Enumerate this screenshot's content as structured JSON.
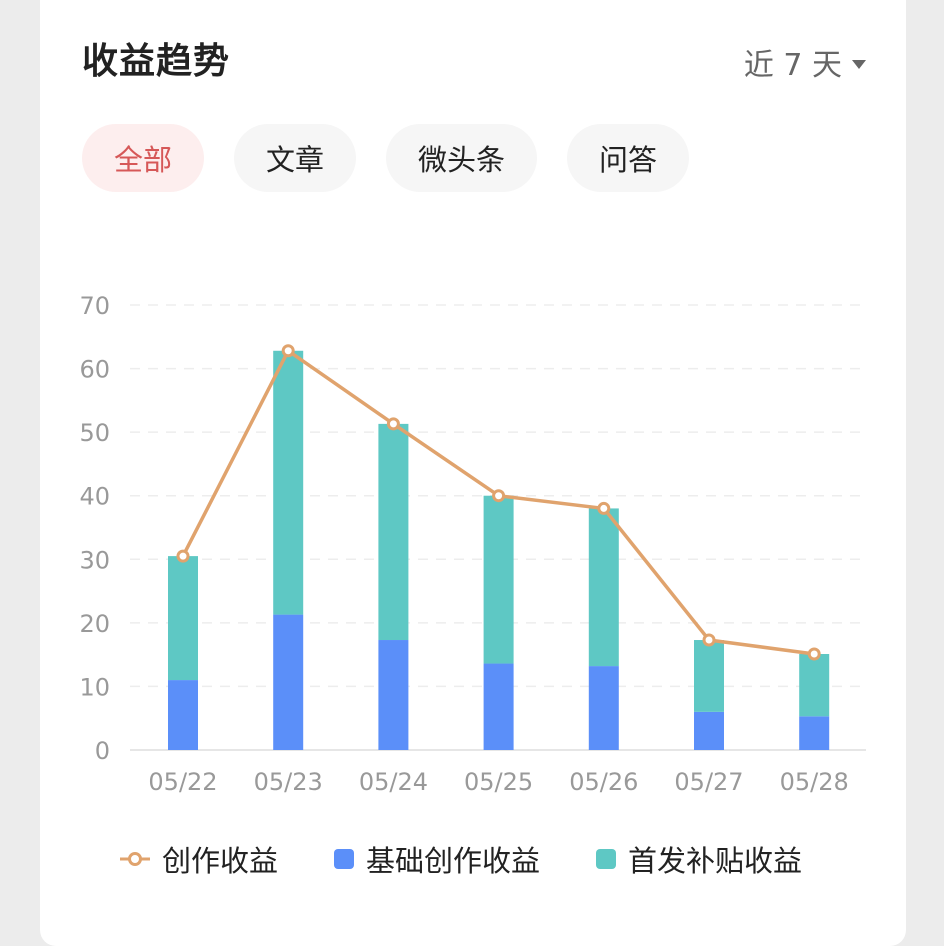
{
  "header": {
    "title": "收益趋势",
    "range_label": "近 7 天"
  },
  "tabs": [
    {
      "label": "全部",
      "active": true
    },
    {
      "label": "文章",
      "active": false
    },
    {
      "label": "微头条",
      "active": false
    },
    {
      "label": "问答",
      "active": false
    }
  ],
  "colors": {
    "base": "#5b8ff9",
    "subsidy": "#5ec8c4",
    "line": "#e0a36d",
    "active_tab_text": "#d65858"
  },
  "legend": [
    {
      "label": "创作收益",
      "kind": "line"
    },
    {
      "label": "基础创作收益",
      "kind": "bar"
    },
    {
      "label": "首发补贴收益",
      "kind": "bar"
    }
  ],
  "chart_data": {
    "type": "bar",
    "stacked": true,
    "categories": [
      "05/22",
      "05/23",
      "05/24",
      "05/25",
      "05/26",
      "05/27",
      "05/28"
    ],
    "ylim": [
      0,
      70
    ],
    "yticks": [
      0,
      10,
      20,
      30,
      40,
      50,
      60,
      70
    ],
    "series": [
      {
        "name": "基础创作收益",
        "type": "bar",
        "values": [
          11,
          21.3,
          17.3,
          13.6,
          13.2,
          6.0,
          5.3
        ]
      },
      {
        "name": "首发补贴收益",
        "type": "bar",
        "values": [
          19.5,
          41.5,
          34.0,
          26.4,
          24.8,
          11.3,
          9.8
        ]
      },
      {
        "name": "创作收益",
        "type": "line",
        "values": [
          30.5,
          62.8,
          51.3,
          40.0,
          38.0,
          17.3,
          15.1
        ]
      }
    ],
    "grid": true,
    "legend_position": "bottom"
  }
}
